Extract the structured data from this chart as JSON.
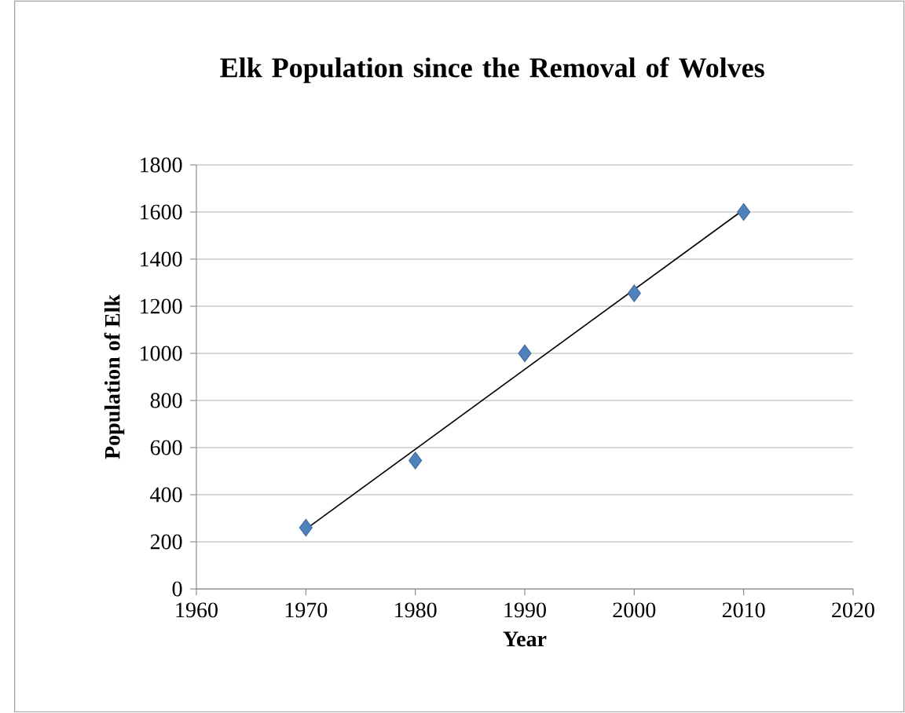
{
  "chart_data": {
    "type": "scatter",
    "title": "Elk Population since the Removal of Wolves",
    "xlabel": "Year",
    "ylabel": "Population of Elk",
    "series": [
      {
        "color": "#4f81bd",
        "marker": "diamond",
        "x": [
          1970,
          1980,
          1990,
          2000,
          2010
        ],
        "values": [
          260,
          545,
          1000,
          1255,
          1600
        ]
      },
      {
        "type": "line",
        "color": "#000000",
        "marker": "none",
        "x": [
          1970,
          2010
        ],
        "values": [
          254,
          1610
        ]
      }
    ],
    "xlim": [
      1960,
      2020
    ],
    "xticks": [
      1960,
      1970,
      1980,
      1990,
      2000,
      2010,
      2020
    ],
    "ylim": [
      0,
      1800
    ],
    "yticks": [
      0,
      200,
      400,
      600,
      800,
      1000,
      1200,
      1400,
      1600,
      1800
    ],
    "grid": "y"
  }
}
